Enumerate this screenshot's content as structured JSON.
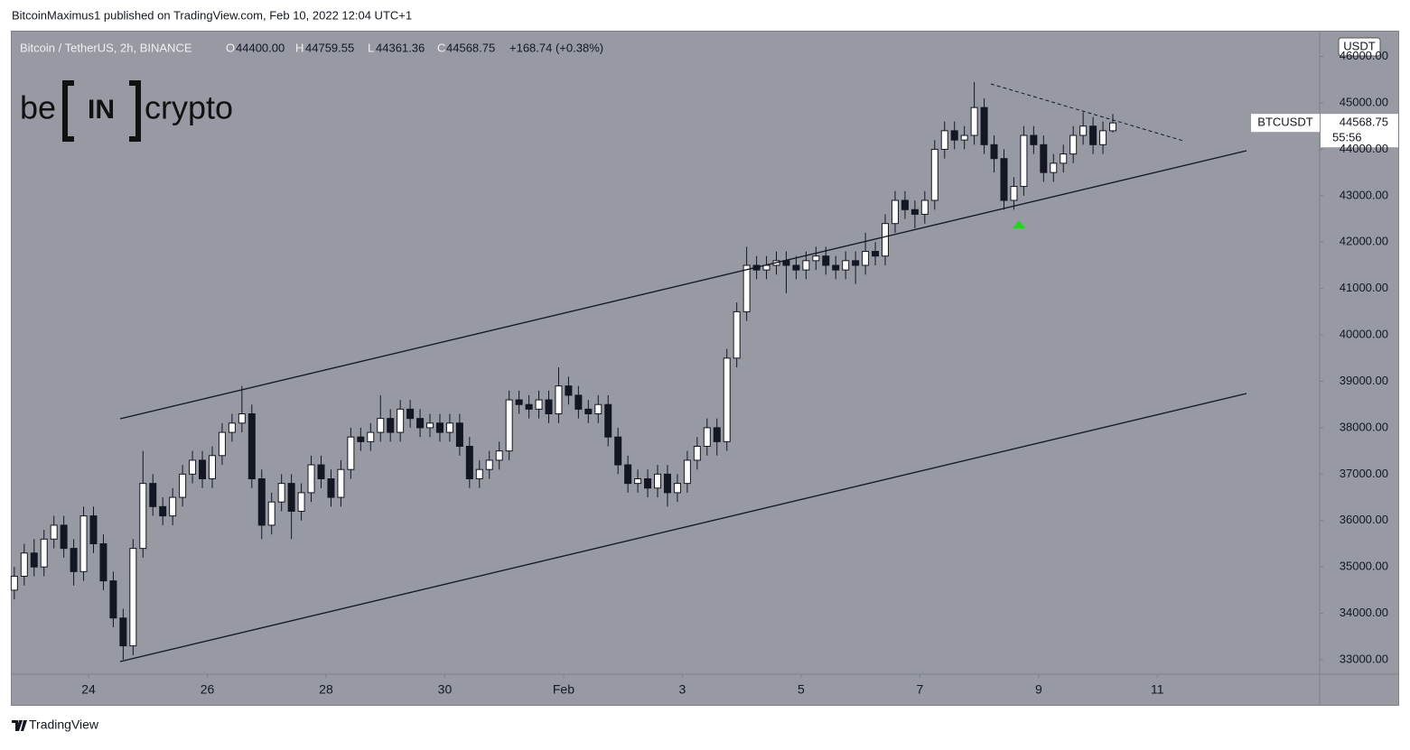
{
  "header": {
    "publisher": "BitcoinMaximus1 published on TradingView.com, Feb 10, 2022 12:04 UTC+1"
  },
  "logo": {
    "left": "be",
    "middle": "IN",
    "right": "crypto"
  },
  "footer": {
    "brand": "TradingView"
  },
  "legend": {
    "symbol": "Bitcoin / TetherUS, 2h, BINANCE",
    "o": "O",
    "open": "44400.00",
    "h": "H",
    "high": "44759.55",
    "l": "L",
    "low": "44361.36",
    "c": "C",
    "close": "44568.75",
    "change": "+168.74 (+0.38%)"
  },
  "price_axis": {
    "currency": "USDT",
    "ticker": "BTCUSDT",
    "last": "44568.75",
    "countdown": "55:56"
  },
  "chart_data": {
    "type": "candlestick",
    "up_color": "#ffffff",
    "down_color": "#131722",
    "wick_color": "#131722",
    "xlim": [
      -0.26,
      131.9
    ],
    "ylim": [
      32689,
      46537
    ],
    "xticks": [
      {
        "value": 7.5,
        "label": "24"
      },
      {
        "value": 19.5,
        "label": "26"
      },
      {
        "value": 31.5,
        "label": "28"
      },
      {
        "value": 43.5,
        "label": "30"
      },
      {
        "value": 55.5,
        "label": "Feb"
      },
      {
        "value": 67.5,
        "label": "3"
      },
      {
        "value": 79.5,
        "label": "5"
      },
      {
        "value": 91.5,
        "label": "7"
      },
      {
        "value": 103.5,
        "label": "9"
      },
      {
        "value": 115.5,
        "label": "11"
      }
    ],
    "yticks": [
      {
        "value": 33000,
        "label": "33000.00"
      },
      {
        "value": 34000,
        "label": "34000.00"
      },
      {
        "value": 35000,
        "label": "35000.00"
      },
      {
        "value": 36000,
        "label": "36000.00"
      },
      {
        "value": 37000,
        "label": "37000.00"
      },
      {
        "value": 38000,
        "label": "38000.00"
      },
      {
        "value": 39000,
        "label": "39000.00"
      },
      {
        "value": 40000,
        "label": "40000.00"
      },
      {
        "value": 41000,
        "label": "41000.00"
      },
      {
        "value": 42000,
        "label": "42000.00"
      },
      {
        "value": 43000,
        "label": "43000.00"
      },
      {
        "value": 44000,
        "label": "44000.00"
      },
      {
        "value": 45000,
        "label": "45000.00"
      },
      {
        "value": 46000,
        "label": "46000.00"
      }
    ],
    "open": [
      34500,
      34800,
      35300,
      35000,
      35600,
      35900,
      35400,
      34900,
      36100,
      35500,
      34700,
      33900,
      33300,
      35400,
      36800,
      36300,
      36100,
      36500,
      37000,
      37300,
      36900,
      37400,
      37900,
      38100,
      38300,
      36900,
      35900,
      36400,
      36800,
      36200,
      36600,
      37200,
      36900,
      36500,
      37100,
      37800,
      37700,
      37900,
      38200,
      37900,
      38400,
      38200,
      38000,
      38100,
      37900,
      38100,
      37600,
      36900,
      37100,
      37300,
      37500,
      38600,
      38500,
      38400,
      38600,
      38300,
      38900,
      38700,
      38400,
      38300,
      38500,
      37800,
      37200,
      36800,
      36900,
      36700,
      37000,
      36600,
      36800,
      37300,
      37600,
      38000,
      37700,
      39500,
      40500,
      41500,
      41400,
      41500,
      41600,
      41500,
      41400,
      41600,
      41700,
      41500,
      41400,
      41600,
      41500,
      41800,
      41700,
      42400,
      42900,
      42700,
      42600,
      42900,
      44000,
      44400,
      44200,
      44300,
      44900,
      44100,
      43800,
      42900,
      43200,
      44300,
      44100,
      43500,
      43700,
      43900,
      44300,
      44500,
      44100,
      44400
    ],
    "high": [
      35000,
      35500,
      35600,
      35800,
      36100,
      36100,
      35600,
      36300,
      36300,
      35700,
      34900,
      34100,
      35600,
      37500,
      37000,
      36500,
      36700,
      37200,
      37500,
      37500,
      37600,
      38100,
      38300,
      38900,
      38500,
      37100,
      36600,
      37000,
      37000,
      36800,
      37400,
      37400,
      37100,
      37300,
      38000,
      38000,
      38100,
      38700,
      38400,
      38600,
      38600,
      38400,
      38300,
      38300,
      38300,
      38300,
      37800,
      37300,
      37500,
      37700,
      38800,
      38800,
      38700,
      38800,
      38800,
      39300,
      39100,
      38900,
      38600,
      38700,
      38700,
      38000,
      37400,
      37100,
      37100,
      37200,
      37200,
      37000,
      37500,
      37800,
      38200,
      38200,
      39700,
      40700,
      41900,
      41700,
      41700,
      41800,
      41800,
      41700,
      41800,
      41900,
      41900,
      41700,
      41800,
      41800,
      42200,
      42000,
      42600,
      43100,
      43100,
      42900,
      43100,
      44200,
      44600,
      44600,
      44500,
      45450,
      45100,
      44300,
      44000,
      43400,
      44500,
      44500,
      44300,
      43900,
      44100,
      44500,
      44800,
      44700,
      44600,
      44759.55
    ],
    "low": [
      34300,
      34600,
      34800,
      34800,
      35400,
      35200,
      34600,
      34700,
      35300,
      34500,
      33700,
      33000,
      33100,
      35200,
      36100,
      35900,
      35900,
      36300,
      36800,
      36700,
      36700,
      37200,
      37700,
      37900,
      36700,
      35600,
      35700,
      36200,
      35600,
      36000,
      36400,
      36700,
      36300,
      36300,
      36900,
      37500,
      37500,
      37700,
      37700,
      37700,
      38000,
      37800,
      37800,
      37700,
      37700,
      37400,
      36700,
      36700,
      36900,
      37100,
      37300,
      38300,
      38200,
      38200,
      38100,
      38100,
      38500,
      38200,
      38100,
      38100,
      37600,
      37000,
      36600,
      36600,
      36500,
      36500,
      36300,
      36400,
      36600,
      37100,
      37400,
      37400,
      37500,
      39300,
      40300,
      41200,
      41200,
      41300,
      40900,
      41200,
      41200,
      41400,
      41300,
      41200,
      41200,
      41100,
      41300,
      41500,
      41500,
      42200,
      42500,
      42300,
      42400,
      42700,
      43800,
      44000,
      44000,
      44100,
      43900,
      43500,
      42700,
      42700,
      43000,
      43900,
      43300,
      43300,
      43500,
      43700,
      44100,
      43900,
      43900,
      44361.36
    ],
    "close": [
      34800,
      35300,
      35000,
      35600,
      35900,
      35400,
      34900,
      36100,
      35500,
      34700,
      33900,
      33300,
      35400,
      36800,
      36300,
      36100,
      36500,
      37000,
      37300,
      36900,
      37400,
      37900,
      38100,
      38300,
      36900,
      35900,
      36400,
      36800,
      36200,
      36600,
      37200,
      36900,
      36500,
      37100,
      37800,
      37700,
      37900,
      38200,
      37900,
      38400,
      38200,
      38000,
      38100,
      37900,
      38100,
      37600,
      36900,
      37100,
      37300,
      37500,
      38600,
      38500,
      38400,
      38600,
      38300,
      38900,
      38700,
      38400,
      38300,
      38500,
      37800,
      37200,
      36800,
      36900,
      36700,
      37000,
      36600,
      36800,
      37300,
      37600,
      38000,
      37700,
      39500,
      40500,
      41500,
      41400,
      41500,
      41600,
      41500,
      41400,
      41600,
      41700,
      41500,
      41400,
      41600,
      41500,
      41800,
      41700,
      42400,
      42900,
      42700,
      42600,
      42900,
      44000,
      44400,
      44200,
      44300,
      44900,
      44100,
      43800,
      42900,
      43200,
      44300,
      44100,
      43500,
      43700,
      43900,
      44300,
      44500,
      44100,
      44400,
      44568.75
    ]
  }
}
